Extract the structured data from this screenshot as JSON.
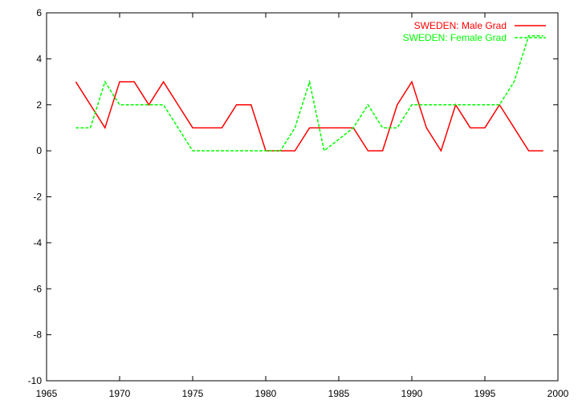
{
  "chart_data": {
    "type": "line",
    "xlim": [
      1965,
      2000
    ],
    "ylim": [
      -10,
      6
    ],
    "xticks": [
      1965,
      1970,
      1975,
      1980,
      1985,
      1990,
      1995,
      2000
    ],
    "yticks": [
      -10,
      -8,
      -6,
      -4,
      -2,
      0,
      2,
      4,
      6
    ],
    "xtick_labels": [
      "1965",
      "1970",
      "1975",
      "1980",
      "1985",
      "1990",
      "1995",
      "2000"
    ],
    "ytick_labels": [
      "-10",
      "-8",
      "-6",
      "-4",
      "-2",
      "0",
      "2",
      "4",
      "6"
    ],
    "grid": false,
    "legend_position": "top-right",
    "x": [
      1967,
      1968,
      1969,
      1970,
      1971,
      1972,
      1973,
      1974,
      1975,
      1976,
      1977,
      1978,
      1979,
      1980,
      1981,
      1982,
      1983,
      1984,
      1985,
      1986,
      1987,
      1988,
      1989,
      1990,
      1991,
      1992,
      1993,
      1994,
      1995,
      1996,
      1997,
      1998,
      1999
    ],
    "series": [
      {
        "name": "SWEDEN: Male Grad",
        "color": "#ff0000",
        "dash": "solid",
        "values": [
          3,
          2,
          1,
          3,
          3,
          2,
          3,
          2,
          1,
          1,
          1,
          2,
          2,
          0,
          0,
          0,
          1,
          1,
          1,
          1,
          0,
          0,
          2,
          3,
          1,
          0,
          2,
          1,
          1,
          2,
          1,
          0,
          0
        ]
      },
      {
        "name": "SWEDEN: Female Grad",
        "color": "#00ff00",
        "dash": "dashed",
        "values": [
          1,
          1,
          3,
          2,
          2,
          2,
          2,
          1,
          0,
          0,
          0,
          0,
          0,
          0,
          0,
          1,
          3,
          0,
          0.5,
          1,
          2,
          1,
          1,
          2,
          2,
          2,
          2,
          2,
          2,
          2,
          3,
          5,
          5
        ]
      }
    ]
  }
}
